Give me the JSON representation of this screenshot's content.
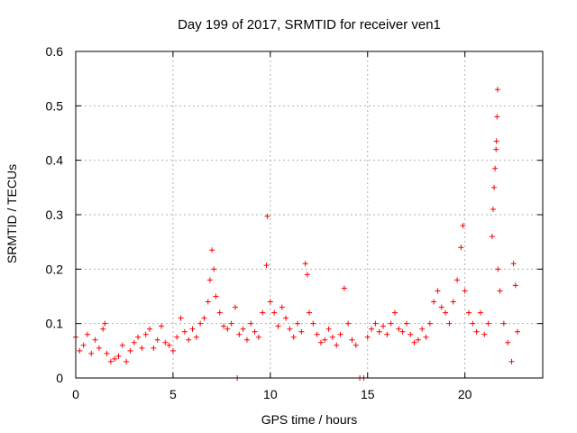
{
  "chart_data": {
    "type": "scatter",
    "title": "Day 199 of 2017, SRMTID for receiver ven1",
    "xlabel": "GPS time / hours",
    "ylabel": "SRMTID / TECUs",
    "xlim": [
      0,
      24
    ],
    "ylim": [
      0,
      0.6
    ],
    "xticks": [
      "0",
      "5",
      "10",
      "15",
      "20"
    ],
    "yticks": [
      "0",
      "0.1",
      "0.2",
      "0.3",
      "0.4",
      "0.5",
      "0.6"
    ],
    "grid": true,
    "marker": "plus",
    "color": "#ff0000",
    "series": [
      {
        "name": "ven1",
        "points": [
          [
            0.0,
            0.075
          ],
          [
            0.2,
            0.05
          ],
          [
            0.4,
            0.06
          ],
          [
            0.6,
            0.08
          ],
          [
            0.8,
            0.045
          ],
          [
            1.0,
            0.07
          ],
          [
            1.2,
            0.055
          ],
          [
            1.4,
            0.09
          ],
          [
            1.5,
            0.1
          ],
          [
            1.6,
            0.045
          ],
          [
            1.8,
            0.03
          ],
          [
            2.0,
            0.035
          ],
          [
            2.2,
            0.04
          ],
          [
            2.4,
            0.06
          ],
          [
            2.6,
            0.03
          ],
          [
            2.8,
            0.05
          ],
          [
            3.0,
            0.065
          ],
          [
            3.2,
            0.075
          ],
          [
            3.4,
            0.055
          ],
          [
            3.6,
            0.08
          ],
          [
            3.8,
            0.09
          ],
          [
            4.0,
            0.055
          ],
          [
            4.2,
            0.07
          ],
          [
            4.4,
            0.095
          ],
          [
            4.6,
            0.065
          ],
          [
            4.8,
            0.06
          ],
          [
            5.0,
            0.05
          ],
          [
            5.2,
            0.075
          ],
          [
            5.4,
            0.11
          ],
          [
            5.6,
            0.085
          ],
          [
            5.8,
            0.07
          ],
          [
            6.0,
            0.09
          ],
          [
            6.2,
            0.075
          ],
          [
            6.4,
            0.1
          ],
          [
            6.6,
            0.11
          ],
          [
            6.8,
            0.14
          ],
          [
            6.9,
            0.18
          ],
          [
            7.0,
            0.235
          ],
          [
            7.1,
            0.2
          ],
          [
            7.2,
            0.15
          ],
          [
            7.4,
            0.12
          ],
          [
            7.6,
            0.095
          ],
          [
            7.8,
            0.09
          ],
          [
            8.0,
            0.1
          ],
          [
            8.2,
            0.13
          ],
          [
            8.3,
            0.0
          ],
          [
            8.4,
            0.08
          ],
          [
            8.6,
            0.09
          ],
          [
            8.8,
            0.07
          ],
          [
            9.0,
            0.1
          ],
          [
            9.2,
            0.085
          ],
          [
            9.4,
            0.075
          ],
          [
            9.6,
            0.12
          ],
          [
            9.8,
            0.207
          ],
          [
            9.85,
            0.297
          ],
          [
            10.0,
            0.14
          ],
          [
            10.2,
            0.12
          ],
          [
            10.4,
            0.095
          ],
          [
            10.6,
            0.13
          ],
          [
            10.8,
            0.11
          ],
          [
            11.0,
            0.09
          ],
          [
            11.2,
            0.075
          ],
          [
            11.4,
            0.1
          ],
          [
            11.6,
            0.085
          ],
          [
            11.8,
            0.21
          ],
          [
            11.9,
            0.19
          ],
          [
            12.0,
            0.12
          ],
          [
            12.2,
            0.1
          ],
          [
            12.4,
            0.08
          ],
          [
            12.6,
            0.065
          ],
          [
            12.8,
            0.07
          ],
          [
            13.0,
            0.09
          ],
          [
            13.2,
            0.075
          ],
          [
            13.4,
            0.06
          ],
          [
            13.6,
            0.08
          ],
          [
            13.8,
            0.165
          ],
          [
            14.0,
            0.1
          ],
          [
            14.2,
            0.07
          ],
          [
            14.4,
            0.06
          ],
          [
            14.6,
            0.0
          ],
          [
            14.8,
            0.0
          ],
          [
            15.0,
            0.075
          ],
          [
            15.2,
            0.09
          ],
          [
            15.4,
            0.1
          ],
          [
            15.6,
            0.085
          ],
          [
            15.8,
            0.095
          ],
          [
            16.0,
            0.08
          ],
          [
            16.2,
            0.1
          ],
          [
            16.4,
            0.12
          ],
          [
            16.6,
            0.09
          ],
          [
            16.8,
            0.085
          ],
          [
            17.0,
            0.1
          ],
          [
            17.2,
            0.08
          ],
          [
            17.4,
            0.065
          ],
          [
            17.6,
            0.07
          ],
          [
            17.8,
            0.09
          ],
          [
            18.0,
            0.075
          ],
          [
            18.2,
            0.1
          ],
          [
            18.4,
            0.14
          ],
          [
            18.6,
            0.16
          ],
          [
            18.8,
            0.13
          ],
          [
            19.0,
            0.12
          ],
          [
            19.2,
            0.1
          ],
          [
            19.4,
            0.14
          ],
          [
            19.6,
            0.18
          ],
          [
            19.8,
            0.24
          ],
          [
            19.9,
            0.28
          ],
          [
            20.0,
            0.16
          ],
          [
            20.2,
            0.12
          ],
          [
            20.4,
            0.1
          ],
          [
            20.6,
            0.085
          ],
          [
            20.8,
            0.12
          ],
          [
            21.0,
            0.08
          ],
          [
            21.2,
            0.1
          ],
          [
            21.4,
            0.26
          ],
          [
            21.45,
            0.31
          ],
          [
            21.5,
            0.35
          ],
          [
            21.55,
            0.385
          ],
          [
            21.6,
            0.42
          ],
          [
            21.62,
            0.435
          ],
          [
            21.65,
            0.48
          ],
          [
            21.68,
            0.53
          ],
          [
            21.7,
            0.2
          ],
          [
            21.8,
            0.16
          ],
          [
            22.0,
            0.1
          ],
          [
            22.2,
            0.065
          ],
          [
            22.4,
            0.03
          ],
          [
            22.5,
            0.21
          ],
          [
            22.6,
            0.17
          ],
          [
            22.7,
            0.085
          ]
        ]
      }
    ]
  }
}
